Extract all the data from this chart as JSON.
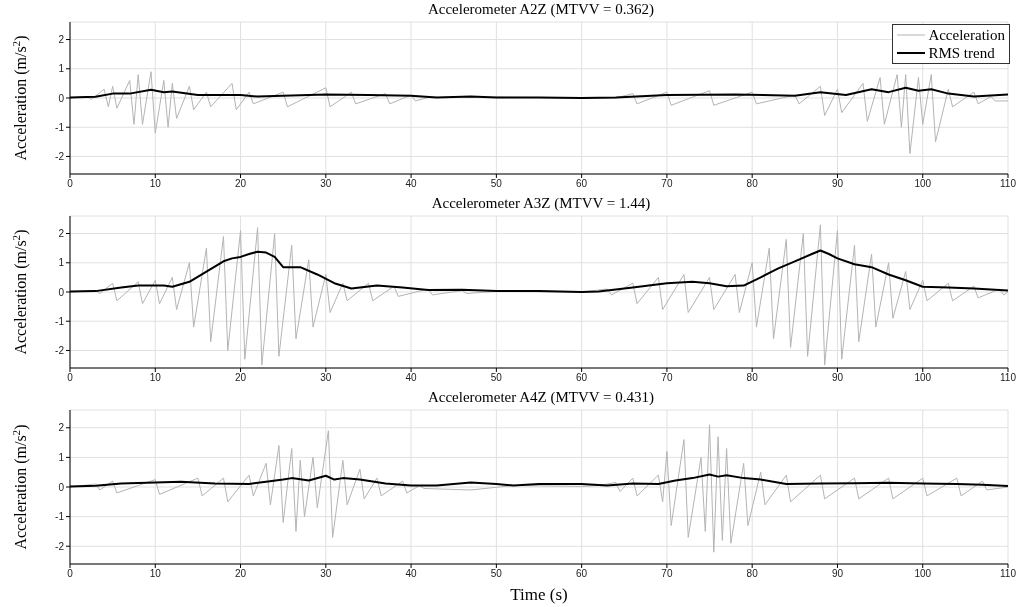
{
  "chart_data": [
    {
      "type": "line",
      "title": "Accelerometer A2Z (MTVV = 0.362)",
      "ylabel": "Acceleration (m/s$^{2}$)",
      "xlim": [
        0,
        110
      ],
      "xticks": [
        0,
        10,
        20,
        30,
        40,
        50,
        60,
        70,
        80,
        90,
        100,
        110
      ],
      "ylim": [
        -2.6,
        2.6
      ],
      "yticks": [
        -2,
        -1,
        0,
        1,
        2
      ],
      "grid": true,
      "legend": "top right",
      "marker": "none",
      "line_style": "solid",
      "series": [
        {
          "name": "Acceleration",
          "color": "#b4b4b4",
          "x": [
            0,
            2,
            2.5,
            4,
            4.5,
            5,
            5.5,
            7,
            7.5,
            8,
            8.5,
            9.5,
            10,
            11,
            11.5,
            12,
            12.5,
            14,
            14.5,
            16,
            16.5,
            19,
            19.5,
            21,
            21.5,
            25,
            25.5,
            30,
            30.5,
            33,
            33.5,
            37,
            37.5,
            40,
            40.5,
            42,
            50,
            60,
            64,
            66,
            66.5,
            70,
            70.5,
            75,
            75.5,
            80,
            80.5,
            85,
            85.5,
            88,
            88.5,
            90,
            90.5,
            93,
            93.5,
            95,
            95.5,
            97,
            97.5,
            98,
            98.5,
            99.5,
            100,
            101,
            101.5,
            103,
            103.5,
            106,
            106.5,
            108,
            108.5,
            110
          ],
          "values": [
            0,
            0.05,
            -0.05,
            0.3,
            -0.3,
            0.4,
            -0.35,
            0.6,
            -0.9,
            0.8,
            -0.9,
            0.9,
            -1.2,
            0.6,
            -1.0,
            0.5,
            -0.7,
            0.4,
            -0.4,
            0.2,
            -0.3,
            0.5,
            -0.4,
            0.2,
            -0.2,
            0.2,
            -0.3,
            0.35,
            -0.3,
            0.2,
            -0.2,
            0.15,
            -0.2,
            0.1,
            -0.1,
            0.02,
            0.03,
            0,
            0,
            0.15,
            -0.2,
            0.2,
            -0.25,
            0.25,
            -0.25,
            0.2,
            -0.2,
            0.1,
            -0.2,
            0.4,
            -0.6,
            0.3,
            -0.5,
            0.5,
            -0.8,
            0.7,
            -0.9,
            0.8,
            -1.0,
            0.8,
            -1.9,
            0.7,
            -0.9,
            0.8,
            -1.5,
            0.3,
            -0.3,
            0.2,
            -0.2,
            0.05,
            -0.1,
            -0.1
          ]
        },
        {
          "name": "RMS trend",
          "color": "#000000",
          "x": [
            0,
            3,
            5,
            7,
            9.5,
            11,
            12,
            15,
            20,
            22,
            30,
            35,
            40,
            43,
            47,
            50,
            55,
            60,
            64,
            70,
            78,
            85,
            88,
            91,
            94,
            96,
            98,
            99.5,
            101,
            103,
            106,
            110
          ],
          "values": [
            0.02,
            0.04,
            0.15,
            0.15,
            0.28,
            0.2,
            0.22,
            0.1,
            0.1,
            0.05,
            0.12,
            0.1,
            0.08,
            0.02,
            0.05,
            0.02,
            0.02,
            0,
            0.02,
            0.1,
            0.12,
            0.08,
            0.2,
            0.1,
            0.3,
            0.2,
            0.35,
            0.25,
            0.3,
            0.15,
            0.05,
            0.12
          ]
        }
      ]
    },
    {
      "type": "line",
      "title": "Accelerometer A3Z (MTVV = 1.44)",
      "ylabel": "Acceleration (m/s$^{2}$)",
      "xlim": [
        0,
        110
      ],
      "xticks": [
        0,
        10,
        20,
        30,
        40,
        50,
        60,
        70,
        80,
        90,
        100,
        110
      ],
      "ylim": [
        -2.6,
        2.6
      ],
      "yticks": [
        -2,
        -1,
        0,
        1,
        2
      ],
      "grid": true,
      "marker": "none",
      "line_style": "solid",
      "series": [
        {
          "color": "#b4b4b4",
          "x": [
            0,
            3,
            3.5,
            5,
            5.5,
            8,
            8.5,
            10,
            10.5,
            12,
            12.5,
            14,
            14.5,
            16,
            16.5,
            18,
            18.5,
            20,
            20.5,
            22,
            22.5,
            24,
            24.5,
            26,
            26.5,
            28,
            28.5,
            30,
            30.5,
            32,
            32.5,
            35,
            35.5,
            38,
            38.5,
            42,
            42.5,
            46,
            46.5,
            50,
            60,
            63,
            63.5,
            66,
            66.5,
            69,
            69.5,
            72,
            72.5,
            75,
            75.5,
            78,
            78.5,
            80,
            80.5,
            82,
            82.5,
            84,
            84.5,
            86,
            86.5,
            88,
            88.5,
            90,
            90.5,
            92,
            92.5,
            94,
            94.5,
            96,
            96.5,
            98,
            98.5,
            100,
            100.5,
            103,
            103.5,
            106,
            106.5,
            109,
            109.5,
            110
          ],
          "values": [
            0,
            0.05,
            -0.05,
            0.3,
            -0.3,
            0.35,
            -0.4,
            0.4,
            -0.4,
            0.5,
            -0.6,
            1.0,
            -1.2,
            1.5,
            -1.7,
            1.9,
            -2.0,
            2.1,
            -2.3,
            2.2,
            -2.5,
            2.0,
            -2.2,
            1.6,
            -1.6,
            1.1,
            -1.2,
            0.6,
            -0.7,
            0.3,
            -0.3,
            0.3,
            -0.3,
            0.2,
            -0.15,
            0.1,
            -0.1,
            0.05,
            -0.05,
            0.02,
            0,
            0.1,
            -0.1,
            0.3,
            -0.4,
            0.5,
            -0.6,
            0.6,
            -0.7,
            0.5,
            -0.6,
            0.6,
            -0.7,
            1.0,
            -1.2,
            1.5,
            -1.6,
            1.8,
            -1.9,
            2.0,
            -2.2,
            2.3,
            -2.5,
            2.1,
            -2.3,
            1.6,
            -1.7,
            1.3,
            -1.2,
            1.0,
            -0.9,
            0.7,
            -0.6,
            0.4,
            -0.3,
            0.3,
            -0.3,
            0.2,
            -0.2,
            0.1,
            -0.1,
            0
          ]
        },
        {
          "color": "#000000",
          "x": [
            0,
            3,
            6,
            8,
            11,
            12,
            14,
            16,
            18,
            19,
            20,
            21,
            22,
            23,
            24,
            25,
            27,
            29,
            31,
            33,
            36,
            39,
            42,
            46,
            50,
            55,
            60,
            62,
            66,
            70,
            73,
            75,
            77,
            79,
            81,
            83,
            85,
            87,
            88,
            89,
            90,
            92,
            94,
            96,
            98,
            100,
            103,
            106,
            110
          ],
          "values": [
            0.02,
            0.03,
            0.15,
            0.22,
            0.22,
            0.18,
            0.35,
            0.7,
            1.05,
            1.15,
            1.2,
            1.3,
            1.38,
            1.35,
            1.2,
            0.85,
            0.85,
            0.6,
            0.3,
            0.12,
            0.22,
            0.15,
            0.07,
            0.08,
            0.03,
            0.03,
            0,
            0.02,
            0.15,
            0.3,
            0.35,
            0.3,
            0.2,
            0.22,
            0.5,
            0.8,
            1.05,
            1.3,
            1.42,
            1.3,
            1.15,
            0.95,
            0.85,
            0.6,
            0.4,
            0.18,
            0.15,
            0.12,
            0.05
          ]
        }
      ]
    },
    {
      "type": "line",
      "title": "Accelerometer A4Z (MTVV = 0.431)",
      "xlabel": "Time (s)",
      "ylabel": "Acceleration (m/s$^{2}$)",
      "xlim": [
        0,
        110
      ],
      "xticks": [
        0,
        10,
        20,
        30,
        40,
        50,
        60,
        70,
        80,
        90,
        100,
        110
      ],
      "ylim": [
        -2.6,
        2.6
      ],
      "yticks": [
        -2,
        -1,
        0,
        1,
        2
      ],
      "grid": true,
      "marker": "none",
      "line_style": "solid",
      "series": [
        {
          "color": "#b4b4b4",
          "x": [
            0,
            3,
            3.5,
            5,
            5.5,
            10,
            10.5,
            15,
            15.5,
            18,
            18.5,
            21,
            21.5,
            23,
            23.5,
            24.5,
            25,
            26,
            26.5,
            27,
            27.5,
            28.5,
            29,
            30.3,
            30.8,
            32,
            32.5,
            34,
            34.5,
            36,
            36.5,
            39,
            39.5,
            41,
            41.5,
            47,
            52,
            60,
            62,
            64,
            64.5,
            66,
            66.5,
            69,
            69.5,
            70,
            70.5,
            72,
            72.5,
            74,
            74.5,
            75,
            75.5,
            76,
            76.5,
            77,
            77.5,
            79,
            79.5,
            81,
            81.5,
            84,
            84.5,
            88,
            88.5,
            92,
            92.5,
            96,
            96.5,
            100,
            100.5,
            104,
            104.5,
            107,
            107.5,
            110
          ],
          "values": [
            0,
            0.1,
            -0.1,
            0.2,
            -0.2,
            0.25,
            -0.25,
            0.3,
            -0.3,
            0.3,
            -0.5,
            0.4,
            -0.3,
            0.8,
            -0.6,
            1.4,
            -1.2,
            1.3,
            -1.5,
            0.9,
            -1.0,
            1.0,
            -0.7,
            1.9,
            -1.7,
            0.9,
            -0.6,
            0.6,
            -0.4,
            0.3,
            -0.3,
            0.2,
            -0.2,
            0.05,
            -0.05,
            -0.1,
            0.05,
            0.02,
            0.05,
            0.15,
            -0.15,
            0.3,
            -0.3,
            0.4,
            -0.5,
            1.2,
            -1.3,
            1.6,
            -1.7,
            1.0,
            -1.5,
            2.1,
            -2.2,
            1.7,
            -1.8,
            1.3,
            -1.9,
            0.8,
            -1.3,
            0.5,
            -0.6,
            0.4,
            -0.5,
            0.4,
            -0.4,
            0.3,
            -0.4,
            0.3,
            -0.4,
            0.3,
            -0.3,
            0.3,
            -0.3,
            0.2,
            -0.1,
            0
          ]
        },
        {
          "color": "#000000",
          "x": [
            0,
            3,
            6,
            10,
            13,
            17,
            21,
            23,
            25,
            26,
            28,
            30,
            31,
            32,
            34,
            37,
            40,
            43,
            47,
            50,
            52,
            55,
            60,
            63,
            66,
            69,
            71,
            73,
            75,
            76,
            77,
            79,
            81,
            84,
            88,
            92,
            96,
            100,
            104,
            107,
            110
          ],
          "values": [
            0.02,
            0.04,
            0.12,
            0.15,
            0.18,
            0.12,
            0.1,
            0.18,
            0.25,
            0.3,
            0.22,
            0.38,
            0.25,
            0.3,
            0.25,
            0.12,
            0.05,
            0.05,
            0.15,
            0.1,
            0.05,
            0.1,
            0.1,
            0.05,
            0.12,
            0.1,
            0.22,
            0.3,
            0.42,
            0.35,
            0.4,
            0.3,
            0.25,
            0.1,
            0.12,
            0.13,
            0.14,
            0.12,
            0.1,
            0.08,
            0.03
          ]
        }
      ]
    }
  ]
}
